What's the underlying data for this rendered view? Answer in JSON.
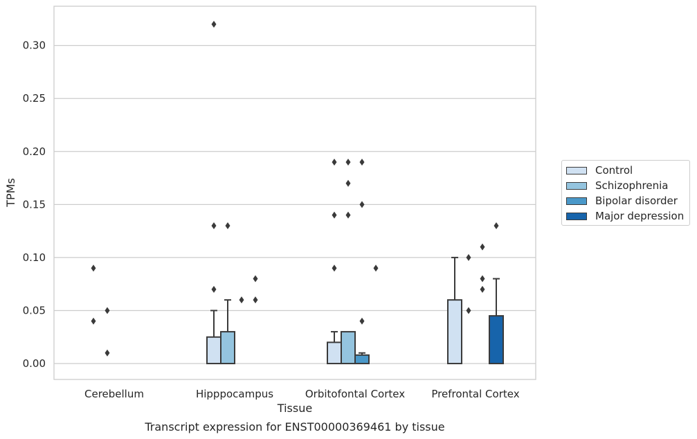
{
  "chart_data": {
    "type": "bar",
    "title": "Transcript expression for ENST00000369461 by tissue",
    "xlabel": "Tissue",
    "ylabel": "TPMs",
    "ylim": [
      -0.015,
      0.337
    ],
    "yticks": [
      "0.00",
      "0.05",
      "0.10",
      "0.15",
      "0.20",
      "0.25",
      "0.30"
    ],
    "grid": true,
    "legend_position": "right",
    "categories": [
      "Cerebellum",
      "Hipppocampus",
      "Orbitofontal Cortex",
      "Prefrontal Cortex"
    ],
    "series": [
      {
        "name": "Control",
        "color": "#d0e1f2",
        "values": [
          0,
          0.025,
          0.02,
          0.06
        ],
        "err_upper": [
          0,
          0.05,
          0.03,
          0.1
        ],
        "outliers": [
          [
            0.04,
            0.09
          ],
          [
            0.07,
            0.13,
            0.32
          ],
          [
            0.09,
            0.14,
            0.19
          ],
          []
        ]
      },
      {
        "name": "Schizophrenia",
        "color": "#94c4df",
        "values": [
          0,
          0.03,
          0.03,
          0
        ],
        "err_upper": [
          0,
          0.06,
          0.03,
          0
        ],
        "outliers": [
          [
            0.01,
            0.05
          ],
          [
            0.13
          ],
          [
            0.14,
            0.17,
            0.19
          ],
          [
            0.05,
            0.1
          ]
        ]
      },
      {
        "name": "Bipolar disorder",
        "color": "#4a98c9",
        "values": [
          0,
          0,
          0.008,
          0
        ],
        "err_upper": [
          0,
          0,
          0.01,
          0
        ],
        "outliers": [
          [],
          [
            0.06
          ],
          [
            0.04,
            0.15,
            0.19
          ],
          [
            0.07,
            0.08,
            0.11
          ]
        ]
      },
      {
        "name": "Major depression",
        "color": "#1764ab",
        "values": [
          0,
          0,
          0,
          0.045
        ],
        "err_upper": [
          0,
          0,
          0,
          0.08
        ],
        "outliers": [
          [],
          [
            0.06,
            0.08
          ],
          [
            0.09
          ],
          [
            0.13
          ]
        ]
      }
    ]
  }
}
